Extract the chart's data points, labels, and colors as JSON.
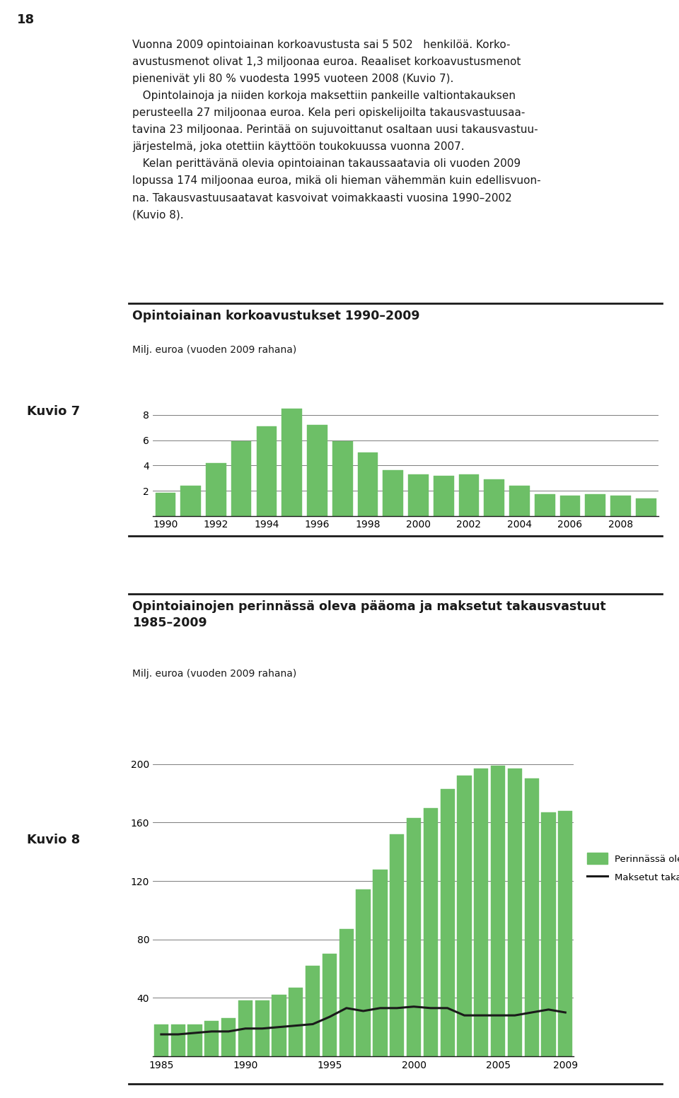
{
  "page_number": "18",
  "chart1": {
    "title": "Opintoiainan korkoavustukset 1990–2009",
    "ylabel": "Milj. euroa (vuoden 2009 rahana)",
    "years": [
      1990,
      1991,
      1992,
      1993,
      1994,
      1995,
      1996,
      1997,
      1998,
      1999,
      2000,
      2001,
      2002,
      2003,
      2004,
      2005,
      2006,
      2007,
      2008,
      2009
    ],
    "values": [
      1.85,
      2.4,
      4.2,
      5.9,
      7.1,
      8.5,
      7.2,
      5.9,
      5.0,
      3.6,
      3.3,
      3.2,
      3.3,
      2.9,
      2.4,
      1.7,
      1.6,
      1.7,
      1.6,
      1.4
    ],
    "bar_color": "#6dbf67",
    "yticks": [
      2,
      4,
      6,
      8
    ],
    "ylim": [
      0,
      9.2
    ],
    "xtick_labels": [
      "1990",
      "1992",
      "1994",
      "1996",
      "1998",
      "2000",
      "2002",
      "2004",
      "2006",
      "2008"
    ],
    "xtick_years": [
      1990,
      1992,
      1994,
      1996,
      1998,
      2000,
      2002,
      2004,
      2006,
      2008
    ],
    "kuvio_label": "Kuvio 7"
  },
  "chart2": {
    "title": "Opintoiainojen perinnässä oleva pääoma ja maksetut takausvastuut\n1985–2009",
    "ylabel": "Milj. euroa (vuoden 2009 rahana)",
    "years": [
      1985,
      1986,
      1987,
      1988,
      1989,
      1990,
      1991,
      1992,
      1993,
      1994,
      1995,
      1996,
      1997,
      1998,
      1999,
      2000,
      2001,
      2002,
      2003,
      2004,
      2005,
      2006,
      2007,
      2008,
      2009
    ],
    "bar_values": [
      22,
      22,
      22,
      24,
      26,
      38,
      38,
      42,
      47,
      62,
      70,
      87,
      114,
      128,
      152,
      163,
      170,
      183,
      192,
      197,
      199,
      197,
      190,
      167,
      168
    ],
    "line_values": [
      15,
      15,
      16,
      17,
      17,
      19,
      19,
      20,
      21,
      22,
      27,
      33,
      31,
      33,
      33,
      34,
      33,
      33,
      28,
      28,
      28,
      28,
      30,
      32,
      30
    ],
    "bar_color": "#6dbf67",
    "line_color": "#1a1a1a",
    "yticks": [
      40,
      80,
      120,
      160,
      200
    ],
    "ylim": [
      0,
      215
    ],
    "xtick_labels": [
      "1985",
      "1990",
      "1995",
      "2000",
      "2005",
      "2009"
    ],
    "xtick_years": [
      1985,
      1990,
      1995,
      2000,
      2005,
      2009
    ],
    "legend_bar": "Perinnässä oleva pääoma",
    "legend_line": "Maksetut takausvastuut",
    "kuvio_label": "Kuvio 8"
  },
  "bg_color": "#ffffff",
  "text_color": "#1a1a1a",
  "separator_color": "#1a1a1a",
  "body_fontsize": 11.0,
  "title_fontsize": 12.5,
  "axis_label_fontsize": 10,
  "tick_fontsize": 10,
  "kuvio_fontsize": 13
}
